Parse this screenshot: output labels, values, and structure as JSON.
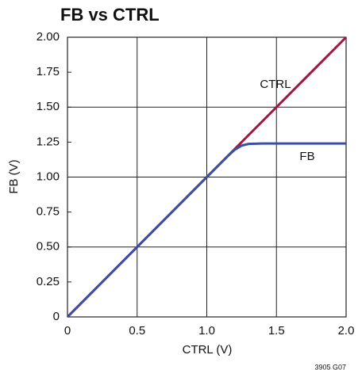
{
  "chart_data": {
    "type": "line",
    "title": "FB vs CTRL",
    "xlabel": "CTRL (V)",
    "ylabel": "FB (V)",
    "note": "3905 G07",
    "series": [
      {
        "name": "CTRL",
        "color": "#a3173f",
        "x": [
          0,
          2
        ],
        "values": [
          0,
          2
        ]
      },
      {
        "name": "FB",
        "color": "#3b4ea6",
        "x": [
          0,
          1,
          1.15,
          1.2,
          1.25,
          1.3,
          1.4,
          2.0
        ],
        "values": [
          0,
          1,
          1.15,
          1.195,
          1.225,
          1.237,
          1.24,
          1.24
        ]
      }
    ],
    "xlim": [
      0,
      2
    ],
    "xticks": [
      0,
      0.5,
      {
        "value": 1,
        "label": "1.0"
      },
      1.5,
      {
        "value": 2,
        "label": "2.0"
      }
    ],
    "ylim": [
      0,
      2
    ],
    "yticks": [
      0,
      {
        "value": 0.25,
        "label": "0.25"
      },
      {
        "value": 0.5,
        "label": "0.50"
      },
      {
        "value": 0.75,
        "label": "0.75"
      },
      {
        "value": 1,
        "label": "1.00"
      },
      {
        "value": 1.25,
        "label": "1.25"
      },
      {
        "value": 1.5,
        "label": "1.50"
      },
      {
        "value": 1.75,
        "label": "1.75"
      },
      {
        "value": 2,
        "label": "2.00"
      }
    ],
    "grid": true
  }
}
